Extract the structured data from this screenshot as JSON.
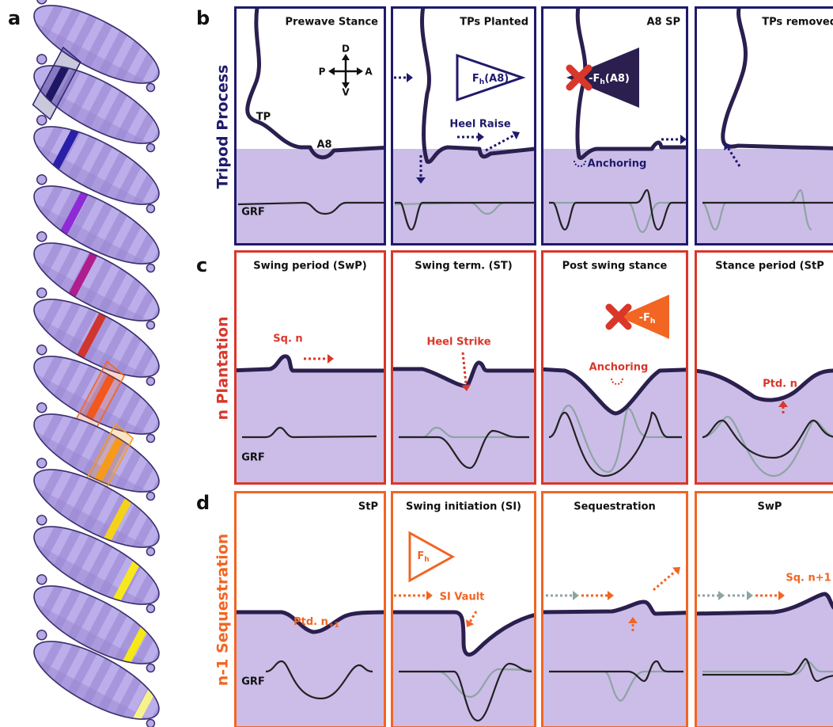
{
  "panel_labels": [
    "a",
    "b",
    "c",
    "d"
  ],
  "rows": [
    {
      "title": "Tripod Process",
      "panels": [
        "Prewave Stance",
        "TPs Planted",
        "A8 SP",
        "TPs removed"
      ]
    },
    {
      "title": "n Plantation",
      "panels": [
        "Swing period (SwP)",
        "Swing term. (ST)",
        "Post swing stance",
        "Stance period (StP"
      ]
    },
    {
      "title": "n-1 Sequestration",
      "panels": [
        "StP",
        "Swing initiation (SI)",
        "Sequestration",
        "SwP"
      ]
    }
  ],
  "annotations": {
    "compass": [
      "D",
      "P",
      "A",
      "V"
    ],
    "tp": "TP",
    "a8": "A8",
    "grf": [
      "GRF",
      "GRF",
      "GRF"
    ],
    "force_planted": {
      "main": "F",
      "sub": "h",
      "rest": "(A8)"
    },
    "heel_raise": "Heel Raise",
    "force_a8sp": {
      "main": "-F",
      "sub": "h",
      "rest": "(A8)"
    },
    "anchoring_b": "Anchoring",
    "sq_n": "Sq. n",
    "heel_strike": "Heel Strike",
    "force_post": {
      "main": "-F",
      "sub": "h"
    },
    "anchoring_c": "Anchoring",
    "ptd_n": "Ptd. n",
    "ptd_n1": {
      "main": "Ptd. n",
      "sub": "+1"
    },
    "force_si": {
      "main": "F",
      "sub": "h"
    },
    "si_vault": "SI Vault",
    "sq_n1": "Sq. n+1"
  }
}
